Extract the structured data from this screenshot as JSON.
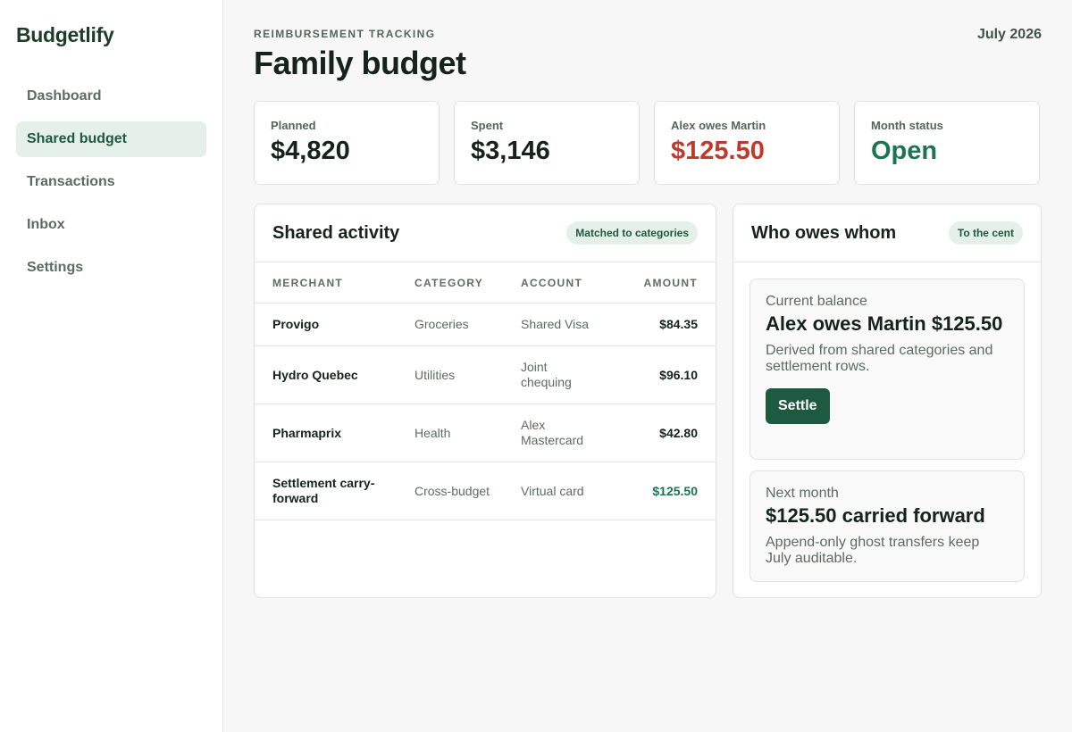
{
  "app": {
    "name": "Budgetlify"
  },
  "nav": {
    "items": [
      {
        "label": "Dashboard"
      },
      {
        "label": "Shared budget"
      },
      {
        "label": "Transactions"
      },
      {
        "label": "Inbox"
      },
      {
        "label": "Settings"
      }
    ],
    "active": "Shared budget"
  },
  "header": {
    "eyebrow": "REIMBURSEMENT TRACKING",
    "title": "Family budget",
    "period": "July 2026"
  },
  "stats": [
    {
      "label": "Planned",
      "value": "$4,820"
    },
    {
      "label": "Spent",
      "value": "$3,146"
    },
    {
      "label": "Alex owes Martin",
      "value": "$125.50"
    },
    {
      "label": "Month status",
      "value": "Open"
    }
  ],
  "activity": {
    "title": "Shared activity",
    "badge": "Matched to categories",
    "columns": {
      "merchant": "MERCHANT",
      "category": "CATEGORY",
      "account": "ACCOUNT",
      "amount": "AMOUNT"
    },
    "rows": [
      {
        "merchant": "Provigo",
        "category": "Groceries",
        "account": "Shared Visa",
        "amount": "$84.35"
      },
      {
        "merchant": "Hydro Quebec",
        "category": "Utilities",
        "account": "Joint chequing",
        "amount": "$96.10"
      },
      {
        "merchant": "Pharmaprix",
        "category": "Health",
        "account": "Alex Mastercard",
        "amount": "$42.80"
      },
      {
        "merchant": "Settlement carry-forward",
        "category": "Cross-budget",
        "account": "Virtual card",
        "amount": "$125.50"
      }
    ]
  },
  "owes": {
    "title": "Who owes whom",
    "badge": "To the cent",
    "current": {
      "label": "Current balance",
      "heading": "Alex owes Martin $125.50",
      "text": "Derived from shared categories and settlement rows.",
      "button": "Settle"
    },
    "next": {
      "label": "Next month",
      "heading": "$125.50 carried forward",
      "text": "Append-only ghost transfers keep July auditable."
    }
  },
  "colors": {
    "accent": "#1e5a40",
    "negative": "#bf3a2b",
    "positive": "#1b7553",
    "active_nav_bg": "#e6f0ea"
  }
}
